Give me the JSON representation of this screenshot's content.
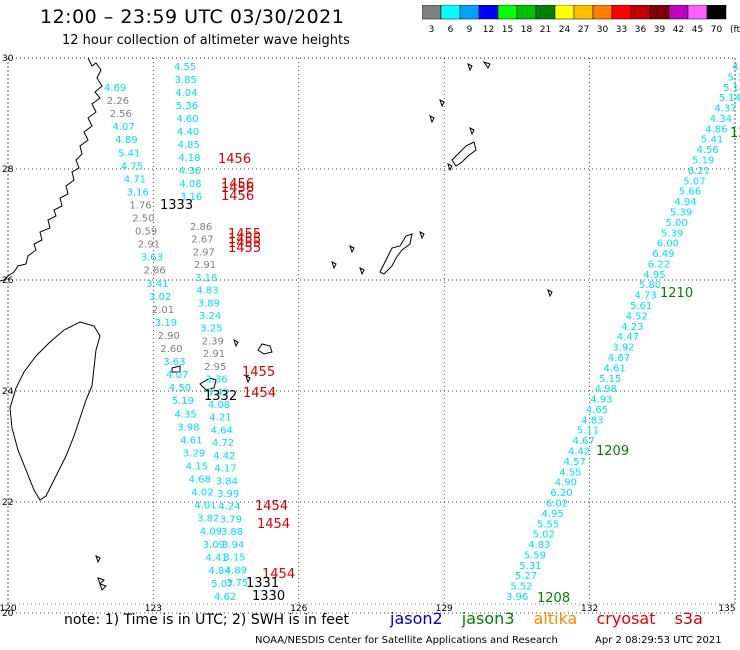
{
  "header": {
    "title": "12:00 – 23:59 UTC 03/30/2021",
    "subtitle": "12 hour collection of altimeter wave heights"
  },
  "legend": {
    "unit": "(ft)",
    "bins": [
      {
        "label": "3",
        "color": "#808080"
      },
      {
        "label": "6",
        "color": "#00ffff"
      },
      {
        "label": "9",
        "color": "#00a0ff"
      },
      {
        "label": "12",
        "color": "#0000ff"
      },
      {
        "label": "15",
        "color": "#00ff00"
      },
      {
        "label": "18",
        "color": "#00c000"
      },
      {
        "label": "21",
        "color": "#008000"
      },
      {
        "label": "24",
        "color": "#ffff00"
      },
      {
        "label": "27",
        "color": "#ffc000"
      },
      {
        "label": "30",
        "color": "#ff8000"
      },
      {
        "label": "33",
        "color": "#ff0000"
      },
      {
        "label": "36",
        "color": "#c00000"
      },
      {
        "label": "39",
        "color": "#800000"
      },
      {
        "label": "42",
        "color": "#c000c0"
      },
      {
        "label": "45",
        "color": "#ff60ff"
      },
      {
        "label": "70",
        "color": "#000000"
      }
    ]
  },
  "map": {
    "lon_ticks": [
      "120",
      "123",
      "126",
      "129",
      "132",
      "135"
    ],
    "lat_ticks": [
      "30",
      "28",
      "26",
      "24",
      "22",
      "20"
    ]
  },
  "tracks": {
    "west_a": {
      "values": [
        "4.55",
        "3.85",
        "4.04",
        "5.36",
        "4.60",
        "4.40",
        "4.85",
        "4.18",
        "4.36",
        "4.08",
        "3.16"
      ],
      "color": "#00e0ff"
    },
    "west_b": {
      "values": [
        "4.69",
        "2.26",
        "2.56",
        "4.07",
        "4.89",
        "5.41",
        "4.75",
        "4.71",
        "3.16",
        "1.76",
        "2.50",
        "0.59",
        "2.91",
        "3.63",
        "2.86",
        "3.41",
        "3.02",
        "2.01",
        "3.19",
        "2.90",
        "2.60",
        "3.63",
        "4.07",
        "4.50",
        "5.19",
        "4.35",
        "3.98",
        "4.61",
        "3.29",
        "4.15",
        "4.68",
        "4.02",
        "4.01",
        "3.82",
        "4.09",
        "3.09",
        "4.41",
        "4.84",
        "5.07",
        "4.62"
      ]
    },
    "west_c": {
      "values": [
        "2.86",
        "2.67",
        "2.97",
        "2.91",
        "3.18",
        "4.83",
        "3.89",
        "3.24",
        "3.25",
        "2.39",
        "2.91",
        "2.95",
        "3.36",
        "3.42",
        "4.08",
        "4.21",
        "4.64",
        "4.72",
        "4.42",
        "4.17",
        "3.84",
        "3.99",
        "4.24",
        "3.79",
        "3.88",
        "3.94",
        "3.15",
        "4.89",
        "3.75"
      ]
    },
    "east": {
      "values": [
        "4.0",
        "5.3",
        "5.18",
        "5.14",
        "4.37",
        "4.34",
        "4.86",
        "5.41",
        "4.56",
        "5.19",
        "6.21",
        "5.07",
        "5.66",
        "4.94",
        "5.39",
        "5.00",
        "5.39",
        "6.00",
        "6.49",
        "6.22",
        "4.95",
        "5.80",
        "4.73",
        "5.61",
        "4.52",
        "4.23",
        "4.47",
        "3.92",
        "4.67",
        "4.61",
        "5.15",
        "4.98",
        "4.93",
        "4.65",
        "4.83",
        "5.11",
        "4.67",
        "4.42",
        "4.57",
        "4.55",
        "4.90",
        "6.20",
        "6.02",
        "4.95",
        "5.55",
        "5.02",
        "4.83",
        "5.59",
        "5.31",
        "5.27",
        "5.52",
        "3.96"
      ],
      "color": "#00e0ff"
    }
  },
  "pass_times": {
    "red": [
      "1456",
      "1456",
      "1456",
      "1456",
      "1455",
      "1455",
      "1455",
      "1455",
      "1455",
      "1454",
      "1454",
      "1454",
      "1454"
    ],
    "black": [
      "1333",
      "1332",
      "1331",
      "1330"
    ],
    "green": [
      "1210",
      "1209",
      "1208"
    ],
    "cyan_partial": [
      "12"
    ]
  },
  "footer": {
    "note": "note:  1) Time is in UTC;  2) SWH is in feet",
    "satellites": [
      {
        "label": "jason2",
        "color": "#0000cc"
      },
      {
        "label": "jason3",
        "color": "#008000"
      },
      {
        "label": "altika",
        "color": "#ff8800"
      },
      {
        "label": "cryosat",
        "color": "#ee0000"
      },
      {
        "label": "s3a",
        "color": "#cc0000"
      }
    ],
    "credit": "NOAA/NESDIS Center for Satellite Applications and Research",
    "timestamp": "Apr  2 08:29:53 UTC 2021"
  }
}
